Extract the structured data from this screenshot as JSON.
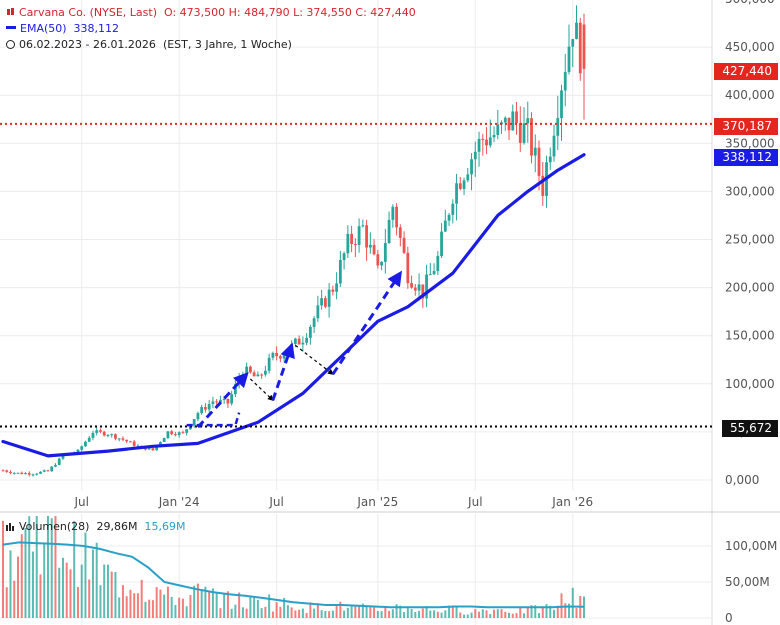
{
  "header": {
    "title": "Carvana Co. (NYSE, Last)",
    "ohlc": "O: 473,500   H: 484,790   L: 374,550   C: 427,440",
    "ema_label": "EMA(50)",
    "ema_value": "338,112",
    "range": "06.02.2023 - 26.01.2026",
    "range_info": "(EST, 3 Jahre, 1 Woche)"
  },
  "volume_header": {
    "label": "Volumen(28)",
    "value": "29,86M",
    "avg": "15,69M"
  },
  "price_tags": {
    "last": "427,440",
    "level_high": "370,187",
    "ema": "338,112",
    "level_low": "55,672"
  },
  "colors": {
    "up": "#26a69a",
    "down": "#ef5350",
    "ema": "#1b1be6",
    "resistance": "#e5261f",
    "support": "#000000",
    "volume_avg": "#2aa0c8"
  },
  "chart_data": [
    {
      "type": "candlestick",
      "title": "Carvana Co. (NYSE, Last)",
      "x_tick_labels": [
        "Jul",
        "Jan '24",
        "Jul",
        "Jan '25",
        "Jul",
        "Jan '26"
      ],
      "y_tick_labels": [
        "0,000",
        "50,000",
        "100,000",
        "150,000",
        "200,000",
        "250,000",
        "300,000",
        "350,000",
        "400,000",
        "450,000",
        "500,000"
      ],
      "ylim": [
        -20,
        500
      ],
      "date_range": [
        "2023-02-06",
        "2026-01-26"
      ],
      "interval": "1 week",
      "close_approx": [
        [
          "2023-02-06",
          10
        ],
        [
          "2023-03-06",
          7
        ],
        [
          "2023-04-03",
          7
        ],
        [
          "2023-05-01",
          9
        ],
        [
          "2023-05-29",
          25
        ],
        [
          "2023-06-26",
          30
        ],
        [
          "2023-07-24",
          50
        ],
        [
          "2023-08-21",
          48
        ],
        [
          "2023-09-18",
          42
        ],
        [
          "2023-10-16",
          35
        ],
        [
          "2023-11-13",
          31
        ],
        [
          "2023-12-11",
          50
        ],
        [
          "2024-01-08",
          48
        ],
        [
          "2024-02-05",
          70
        ],
        [
          "2024-03-04",
          82
        ],
        [
          "2024-04-01",
          80
        ],
        [
          "2024-04-29",
          115
        ],
        [
          "2024-05-27",
          105
        ],
        [
          "2024-06-24",
          128
        ],
        [
          "2024-07-22",
          135
        ],
        [
          "2024-08-19",
          148
        ],
        [
          "2024-09-16",
          175
        ],
        [
          "2024-10-14",
          200
        ],
        [
          "2024-11-11",
          245
        ],
        [
          "2024-12-09",
          262
        ],
        [
          "2025-01-06",
          215
        ],
        [
          "2025-02-03",
          285
        ],
        [
          "2025-03-03",
          215
        ],
        [
          "2025-03-31",
          195
        ],
        [
          "2025-04-28",
          230
        ],
        [
          "2025-05-26",
          300
        ],
        [
          "2025-06-23",
          330
        ],
        [
          "2025-07-21",
          355
        ],
        [
          "2025-08-18",
          360
        ],
        [
          "2025-09-15",
          375
        ],
        [
          "2025-10-13",
          360
        ],
        [
          "2025-11-10",
          305
        ],
        [
          "2025-12-08",
          395
        ],
        [
          "2026-01-05",
          475
        ],
        [
          "2026-01-26",
          427.44
        ]
      ],
      "last": {
        "open": 473.5,
        "high": 484.79,
        "low": 374.55,
        "close": 427.44
      },
      "series": [
        {
          "name": "EMA(50)",
          "last_value": 338.112,
          "values": [
            [
              "2023-02-06",
              40
            ],
            [
              "2023-05-01",
              25
            ],
            [
              "2023-08-21",
              30
            ],
            [
              "2023-11-13",
              35
            ],
            [
              "2024-02-05",
              38
            ],
            [
              "2024-05-27",
              60
            ],
            [
              "2024-08-19",
              90
            ],
            [
              "2024-11-11",
              135
            ],
            [
              "2025-01-06",
              165
            ],
            [
              "2025-03-03",
              180
            ],
            [
              "2025-05-26",
              215
            ],
            [
              "2025-08-18",
              275
            ],
            [
              "2025-10-13",
              300
            ],
            [
              "2025-12-08",
              322
            ],
            [
              "2026-01-26",
              338.112
            ]
          ]
        }
      ],
      "horizontal_lines": [
        {
          "value": 370.187,
          "style": "dotted",
          "color": "red"
        },
        {
          "value": 55.672,
          "style": "dotted",
          "color": "black"
        }
      ],
      "annotations": [
        {
          "kind": "arrow-dashed-blue",
          "from": [
            "2024-02-05",
            55
          ],
          "to": [
            "2024-05-06",
            110
          ]
        },
        {
          "kind": "arrow-dashed-black",
          "from": [
            "2024-05-13",
            105
          ],
          "to": [
            "2024-06-24",
            83
          ]
        },
        {
          "kind": "arrow-dashed-blue",
          "from": [
            "2024-06-24",
            83
          ],
          "to": [
            "2024-07-29",
            140
          ]
        },
        {
          "kind": "arrow-dashed-black",
          "from": [
            "2024-08-05",
            140
          ],
          "to": [
            "2024-10-14",
            110
          ]
        },
        {
          "kind": "arrow-dashed-blue",
          "from": [
            "2024-10-14",
            110
          ],
          "to": [
            "2025-02-17",
            215
          ]
        }
      ],
      "grid": true
    },
    {
      "type": "bar",
      "title": "Volumen(28)",
      "y_tick_labels": [
        "0",
        "50,00M",
        "100,00M"
      ],
      "ylim": [
        0,
        150
      ],
      "unit": "M",
      "last_volume": 29.86,
      "series": [
        {
          "name": "Volumen(28)",
          "monthly_approx": [
            90,
            120,
            130,
            110,
            95,
            80,
            60,
            50,
            55,
            40,
            30,
            28,
            35,
            30,
            25,
            22,
            25,
            20,
            18,
            15,
            18,
            16,
            14,
            12,
            16,
            14,
            13,
            12,
            12,
            10,
            11,
            12,
            10,
            12,
            14,
            25,
            30
          ]
        },
        {
          "name": "average",
          "last_value": 15.69,
          "monthly_approx": [
            102,
            105,
            104,
            103,
            102,
            100,
            96,
            90,
            85,
            70,
            50,
            45,
            40,
            36,
            33,
            31,
            28,
            25,
            22,
            20,
            18,
            18,
            17,
            16,
            15,
            15,
            15,
            15,
            16,
            16,
            15,
            15,
            15,
            15,
            15,
            16,
            15.69
          ]
        }
      ]
    }
  ]
}
